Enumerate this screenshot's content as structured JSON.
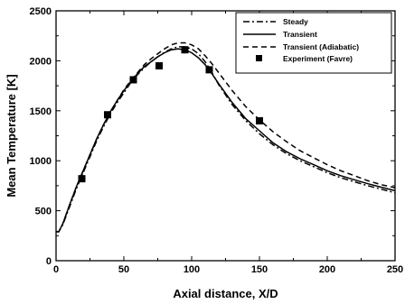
{
  "chart_data": {
    "type": "line",
    "title": "",
    "xlabel": "Axial distance, X/D",
    "ylabel": "Mean Temperature [K]",
    "xlim": [
      0,
      250
    ],
    "ylim": [
      0,
      2500
    ],
    "x_ticks": [
      0,
      50,
      100,
      150,
      200,
      250
    ],
    "y_ticks": [
      0,
      500,
      1000,
      1500,
      2000,
      2500
    ],
    "grid": false,
    "legend_position": "top-right",
    "series": [
      {
        "name": "Steady",
        "style": "dash-dot",
        "color": "#000000",
        "x": [
          0,
          2,
          5,
          10,
          15,
          20,
          25,
          30,
          35,
          40,
          45,
          50,
          55,
          60,
          65,
          70,
          75,
          80,
          85,
          90,
          95,
          100,
          105,
          110,
          115,
          120,
          130,
          140,
          150,
          160,
          170,
          180,
          190,
          200,
          210,
          220,
          230,
          240,
          250
        ],
        "y": [
          290,
          290,
          360,
          540,
          720,
          880,
          1040,
          1200,
          1340,
          1470,
          1580,
          1680,
          1780,
          1860,
          1930,
          1990,
          2040,
          2085,
          2120,
          2140,
          2140,
          2120,
          2070,
          1990,
          1880,
          1760,
          1560,
          1400,
          1270,
          1160,
          1070,
          1000,
          940,
          880,
          830,
          790,
          750,
          715,
          680
        ]
      },
      {
        "name": "Transient",
        "style": "solid",
        "color": "#000000",
        "x": [
          0,
          2,
          5,
          10,
          15,
          20,
          25,
          30,
          35,
          40,
          45,
          50,
          55,
          60,
          65,
          70,
          75,
          80,
          85,
          90,
          95,
          100,
          105,
          110,
          115,
          120,
          130,
          140,
          150,
          160,
          170,
          180,
          190,
          200,
          210,
          220,
          230,
          240,
          250
        ],
        "y": [
          290,
          290,
          370,
          560,
          740,
          900,
          1060,
          1220,
          1360,
          1490,
          1600,
          1700,
          1790,
          1870,
          1940,
          1990,
          2040,
          2080,
          2110,
          2120,
          2110,
          2080,
          2030,
          1960,
          1870,
          1770,
          1580,
          1420,
          1300,
          1180,
          1090,
          1020,
          960,
          900,
          850,
          810,
          770,
          735,
          700
        ]
      },
      {
        "name": "Transient (Adiabatic)",
        "style": "dashed",
        "color": "#000000",
        "x": [
          0,
          2,
          5,
          10,
          15,
          20,
          25,
          30,
          35,
          40,
          45,
          50,
          55,
          60,
          65,
          70,
          75,
          80,
          85,
          90,
          95,
          100,
          105,
          110,
          115,
          120,
          130,
          140,
          150,
          160,
          170,
          180,
          190,
          200,
          210,
          220,
          230,
          240,
          250
        ],
        "y": [
          290,
          290,
          370,
          560,
          740,
          900,
          1060,
          1220,
          1360,
          1490,
          1600,
          1710,
          1800,
          1880,
          1960,
          2020,
          2070,
          2120,
          2160,
          2180,
          2180,
          2160,
          2120,
          2050,
          1970,
          1880,
          1700,
          1540,
          1410,
          1290,
          1190,
          1100,
          1030,
          960,
          900,
          850,
          800,
          760,
          730
        ]
      }
    ],
    "markers": {
      "name": "Experiment (Favre)",
      "symbol": "square",
      "color": "#000000",
      "x": [
        19,
        38,
        57,
        76,
        95,
        113,
        150
      ],
      "y": [
        820,
        1460,
        1810,
        1950,
        2110,
        1910,
        1400
      ]
    }
  }
}
